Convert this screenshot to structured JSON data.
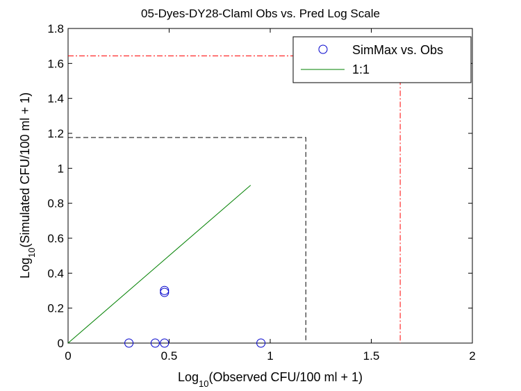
{
  "chart_data": {
    "type": "scatter",
    "title": "05-Dyes-DY28-Claml Obs vs. Pred Log Scale",
    "xlabel": {
      "prefix": "Log",
      "sub": "10",
      "suffix": "(Observed CFU/100 ml + 1)"
    },
    "ylabel": {
      "prefix": "Log",
      "sub": "10",
      "suffix": "(Simulated CFU/100 ml + 1)"
    },
    "xlim": [
      0,
      2
    ],
    "ylim": [
      0,
      1.8
    ],
    "xticks": [
      0,
      0.5,
      1,
      1.5,
      2
    ],
    "xtick_labels": [
      "0",
      "0.5",
      "1",
      "1.5",
      "2"
    ],
    "yticks": [
      0,
      0.2,
      0.4,
      0.6,
      0.8,
      1,
      1.2,
      1.4,
      1.6,
      1.8
    ],
    "ytick_labels": [
      "0",
      "0.2",
      "0.4",
      "0.6",
      "0.8",
      "1",
      "1.2",
      "1.4",
      "1.6",
      "1.8"
    ],
    "grid": false,
    "legend_position": "top-right",
    "series": [
      {
        "name": "SimMax vs. Obs",
        "kind": "scatter",
        "marker": "circle",
        "color": "#0000cc",
        "points": [
          {
            "x": 0.301,
            "y": 0.0
          },
          {
            "x": 0.431,
            "y": 0.0
          },
          {
            "x": 0.477,
            "y": 0.0
          },
          {
            "x": 0.954,
            "y": 0.0
          },
          {
            "x": 0.477,
            "y": 0.301
          },
          {
            "x": 0.477,
            "y": 0.29
          }
        ]
      },
      {
        "name": "1:1",
        "kind": "line",
        "color": "#008000",
        "points": [
          {
            "x": 0,
            "y": 0
          },
          {
            "x": 0.903,
            "y": 0.903
          }
        ]
      }
    ],
    "reference_lines": [
      {
        "style": "dashed",
        "color": "#000000",
        "value": 1.176
      },
      {
        "style": "dashdot",
        "color": "#ff0000",
        "value": 1.643
      }
    ]
  }
}
